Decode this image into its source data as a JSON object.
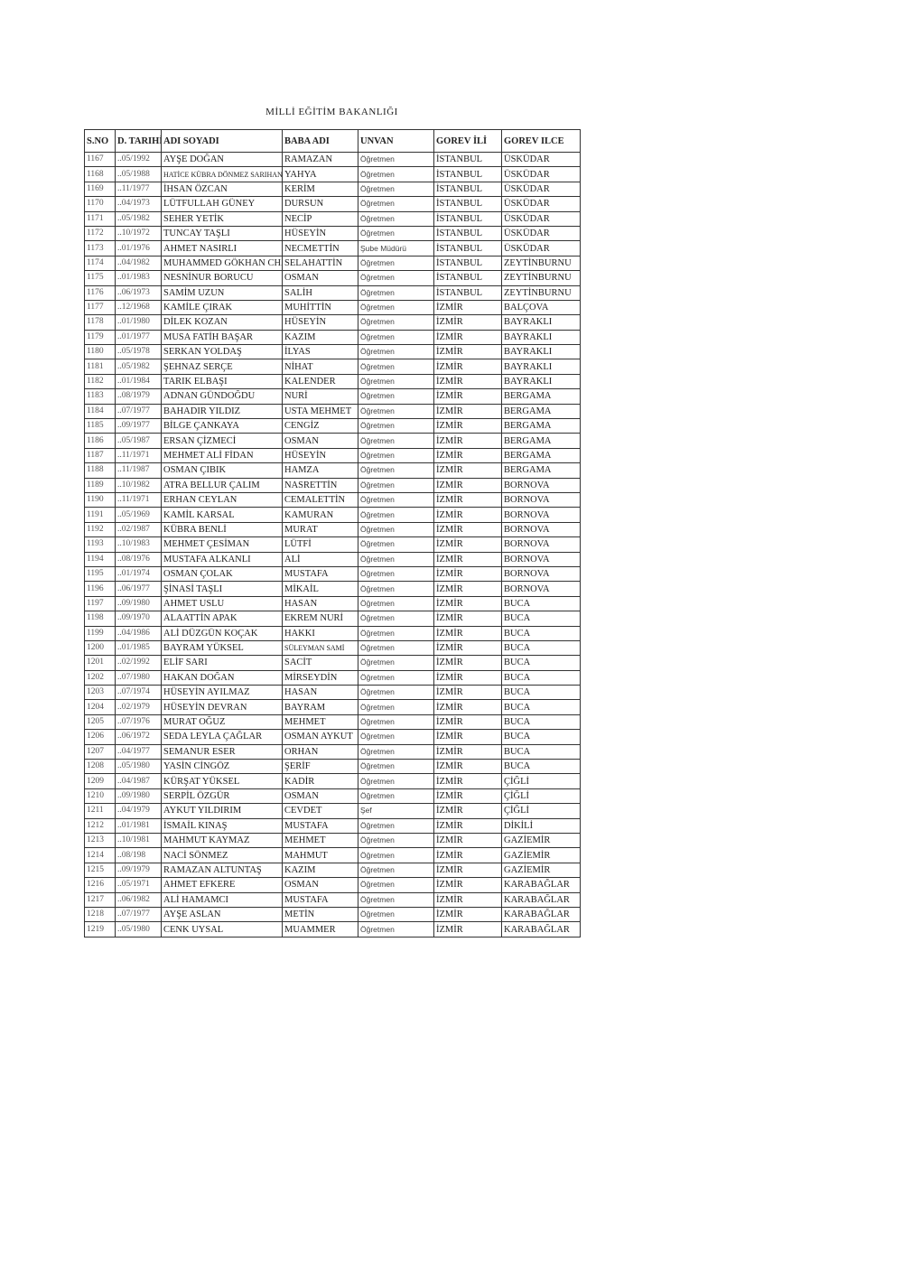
{
  "title": "MİLLİ EĞİTİM BAKANLIĞI",
  "columns": [
    "S.NO",
    "D. TARIHİ",
    "ADI SOYADI",
    "BABA ADI",
    "UNVAN",
    "GOREV İLİ",
    "GOREV ILCE"
  ],
  "rows": [
    [
      "1167",
      "..05/1992",
      "AYŞE DOĞAN",
      "RAMAZAN",
      "Öğretmen",
      "İSTANBUL",
      "ÜSKÜDAR"
    ],
    [
      "1168",
      "..05/1988",
      "HATİCE KÜBRA DÖNMEZ SARIHAN",
      "YAHYA",
      "Öğretmen",
      "İSTANBUL",
      "ÜSKÜDAR"
    ],
    [
      "1169",
      "..11/1977",
      "İHSAN ÖZCAN",
      "KERİM",
      "Öğretmen",
      "İSTANBUL",
      "ÜSKÜDAR"
    ],
    [
      "1170",
      "..04/1973",
      "LÜTFULLAH GÜNEY",
      "DURSUN",
      "Öğretmen",
      "İSTANBUL",
      "ÜSKÜDAR"
    ],
    [
      "1171",
      "..05/1982",
      "SEHER YETİK",
      "NECİP",
      "Öğretmen",
      "İSTANBUL",
      "ÜSKÜDAR"
    ],
    [
      "1172",
      "..10/1972",
      "TUNCAY TAŞLI",
      "HÜSEYİN",
      "Öğretmen",
      "İSTANBUL",
      "ÜSKÜDAR"
    ],
    [
      "1173",
      "..01/1976",
      "AHMET NASIRLI",
      "NECMETTİN",
      "Şube Müdürü",
      "İSTANBUL",
      "ÜSKÜDAR"
    ],
    [
      "1174",
      "..04/1982",
      "MUHAMMED GÖKHAN CHAM",
      "SELAHATTİN",
      "Öğretmen",
      "İSTANBUL",
      "ZEYTİNBURNU"
    ],
    [
      "1175",
      "..01/1983",
      "NESNİNUR BORUCU",
      "OSMAN",
      "Öğretmen",
      "İSTANBUL",
      "ZEYTİNBURNU"
    ],
    [
      "1176",
      "..06/1973",
      "SAMİM UZUN",
      "SALİH",
      "Öğretmen",
      "İSTANBUL",
      "ZEYTİNBURNU"
    ],
    [
      "1177",
      "..12/1968",
      "KAMİLE ÇIRAK",
      "MUHİTTİN",
      "Öğretmen",
      "İZMİR",
      "BALÇOVA"
    ],
    [
      "1178",
      "..01/1980",
      "DİLEK KOZAN",
      "HÜSEYİN",
      "Öğretmen",
      "İZMİR",
      "BAYRAKLI"
    ],
    [
      "1179",
      "..01/1977",
      "MUSA FATİH BAŞAR",
      "KAZIM",
      "Öğretmen",
      "İZMİR",
      "BAYRAKLI"
    ],
    [
      "1180",
      "..05/1978",
      "SERKAN YOLDAŞ",
      "İLYAS",
      "Öğretmen",
      "İZMİR",
      "BAYRAKLI"
    ],
    [
      "1181",
      "..05/1982",
      "ŞEHNAZ SERÇE",
      "NİHAT",
      "Öğretmen",
      "İZMİR",
      "BAYRAKLI"
    ],
    [
      "1182",
      "..01/1984",
      "TARIK ELBAŞI",
      "KALENDER",
      "Öğretmen",
      "İZMİR",
      "BAYRAKLI"
    ],
    [
      "1183",
      "..08/1979",
      "ADNAN GÜNDOĞDU",
      "NURİ",
      "Öğretmen",
      "İZMİR",
      "BERGAMA"
    ],
    [
      "1184",
      "..07/1977",
      "BAHADIR YILDIZ",
      "USTA MEHMET",
      "Öğretmen",
      "İZMİR",
      "BERGAMA"
    ],
    [
      "1185",
      "..09/1977",
      "BİLGE ÇANKAYA",
      "CENGİZ",
      "Öğretmen",
      "İZMİR",
      "BERGAMA"
    ],
    [
      "1186",
      "..05/1987",
      "ERSAN ÇİZMECİ",
      "OSMAN",
      "Öğretmen",
      "İZMİR",
      "BERGAMA"
    ],
    [
      "1187",
      "..11/1971",
      "MEHMET ALİ FİDAN",
      "HÜSEYİN",
      "Öğretmen",
      "İZMİR",
      "BERGAMA"
    ],
    [
      "1188",
      "..11/1987",
      "OSMAN ÇIBIK",
      "HAMZA",
      "Öğretmen",
      "İZMİR",
      "BERGAMA"
    ],
    [
      "1189",
      "..10/1982",
      "ATRA BELLUR ÇALIM",
      "NASRETTİN",
      "Öğretmen",
      "İZMİR",
      "BORNOVA"
    ],
    [
      "1190",
      "..11/1971",
      "ERHAN CEYLAN",
      "CEMALETTİN",
      "Öğretmen",
      "İZMİR",
      "BORNOVA"
    ],
    [
      "1191",
      "..05/1969",
      "KAMİL KARSAL",
      "KAMURAN",
      "Öğretmen",
      "İZMİR",
      "BORNOVA"
    ],
    [
      "1192",
      "..02/1987",
      "KÜBRA BENLİ",
      "MURAT",
      "Öğretmen",
      "İZMİR",
      "BORNOVA"
    ],
    [
      "1193",
      "..10/1983",
      "MEHMET ÇESİMAN",
      "LÜTFİ",
      "Öğretmen",
      "İZMİR",
      "BORNOVA"
    ],
    [
      "1194",
      "..08/1976",
      "MUSTAFA ALKANLI",
      "ALİ",
      "Öğretmen",
      "İZMİR",
      "BORNOVA"
    ],
    [
      "1195",
      "..01/1974",
      "OSMAN ÇOLAK",
      "MUSTAFA",
      "Öğretmen",
      "İZMİR",
      "BORNOVA"
    ],
    [
      "1196",
      "..06/1977",
      "ŞİNASİ TAŞLI",
      "MİKAİL",
      "Öğretmen",
      "İZMİR",
      "BORNOVA"
    ],
    [
      "1197",
      "..09/1980",
      "AHMET USLU",
      "HASAN",
      "Öğretmen",
      "İZMİR",
      "BUCA"
    ],
    [
      "1198",
      "..09/1970",
      "ALAATTİN APAK",
      "EKREM NURİ",
      "Öğretmen",
      "İZMİR",
      "BUCA"
    ],
    [
      "1199",
      "..04/1986",
      "ALİ DÜZGÜN KOÇAK",
      "HAKKI",
      "Öğretmen",
      "İZMİR",
      "BUCA"
    ],
    [
      "1200",
      "..01/1985",
      "BAYRAM YÜKSEL",
      "SÜLEYMAN SAMİ",
      "Öğretmen",
      "İZMİR",
      "BUCA"
    ],
    [
      "1201",
      "..02/1992",
      "ELİF SARI",
      "SACİT",
      "Öğretmen",
      "İZMİR",
      "BUCA"
    ],
    [
      "1202",
      "..07/1980",
      "HAKAN DOĞAN",
      "MİRSEYDİN",
      "Öğretmen",
      "İZMİR",
      "BUCA"
    ],
    [
      "1203",
      "..07/1974",
      "HÜSEYİN AYILMAZ",
      "HASAN",
      "Öğretmen",
      "İZMİR",
      "BUCA"
    ],
    [
      "1204",
      "..02/1979",
      "HÜSEYİN DEVRAN",
      "BAYRAM",
      "Öğretmen",
      "İZMİR",
      "BUCA"
    ],
    [
      "1205",
      "..07/1976",
      "MURAT OĞUZ",
      "MEHMET",
      "Öğretmen",
      "İZMİR",
      "BUCA"
    ],
    [
      "1206",
      "..06/1972",
      "SEDA LEYLA ÇAĞLAR",
      "OSMAN AYKUT",
      "Öğretmen",
      "İZMİR",
      "BUCA"
    ],
    [
      "1207",
      "..04/1977",
      "SEMANUR ESER",
      "ORHAN",
      "Öğretmen",
      "İZMİR",
      "BUCA"
    ],
    [
      "1208",
      "..05/1980",
      "YASİN CİNGÖZ",
      "ŞERİF",
      "Öğretmen",
      "İZMİR",
      "BUCA"
    ],
    [
      "1209",
      "..04/1987",
      "KÜRŞAT YÜKSEL",
      "KADİR",
      "Öğretmen",
      "İZMİR",
      "ÇİĞLİ"
    ],
    [
      "1210",
      "..09/1980",
      "SERPİL ÖZGÜR",
      "OSMAN",
      "Öğretmen",
      "İZMİR",
      "ÇİĞLİ"
    ],
    [
      "1211",
      "..04/1979",
      "AYKUT YILDIRIM",
      "CEVDET",
      "Şef",
      "İZMİR",
      "ÇİĞLİ"
    ],
    [
      "1212",
      "..01/1981",
      "İSMAİL KINAŞ",
      "MUSTAFA",
      "Öğretmen",
      "İZMİR",
      "DİKİLİ"
    ],
    [
      "1213",
      "..10/1981",
      "MAHMUT KAYMAZ",
      "MEHMET",
      "Öğretmen",
      "İZMİR",
      "GAZİEMİR"
    ],
    [
      "1214",
      "..08/198",
      "NACİ SÖNMEZ",
      "MAHMUT",
      "Öğretmen",
      "İZMİR",
      "GAZİEMİR"
    ],
    [
      "1215",
      "..09/1979",
      "RAMAZAN ALTUNTAŞ",
      "KAZIM",
      "Öğretmen",
      "İZMİR",
      "GAZİEMİR"
    ],
    [
      "1216",
      "..05/1971",
      "AHMET EFKERE",
      "OSMAN",
      "Öğretmen",
      "İZMİR",
      "KARABAĞLAR"
    ],
    [
      "1217",
      "..06/1982",
      "ALİ HAMAMCI",
      "MUSTAFA",
      "Öğretmen",
      "İZMİR",
      "KARABAĞLAR"
    ],
    [
      "1218",
      "..07/1977",
      "AYŞE ASLAN",
      "METİN",
      "Öğretmen",
      "İZMİR",
      "KARABAĞLAR"
    ],
    [
      "1219",
      "..05/1980",
      "CENK UYSAL",
      "MUAMMER",
      "Öğretmen",
      "İZMİR",
      "KARABAĞLAR"
    ]
  ]
}
